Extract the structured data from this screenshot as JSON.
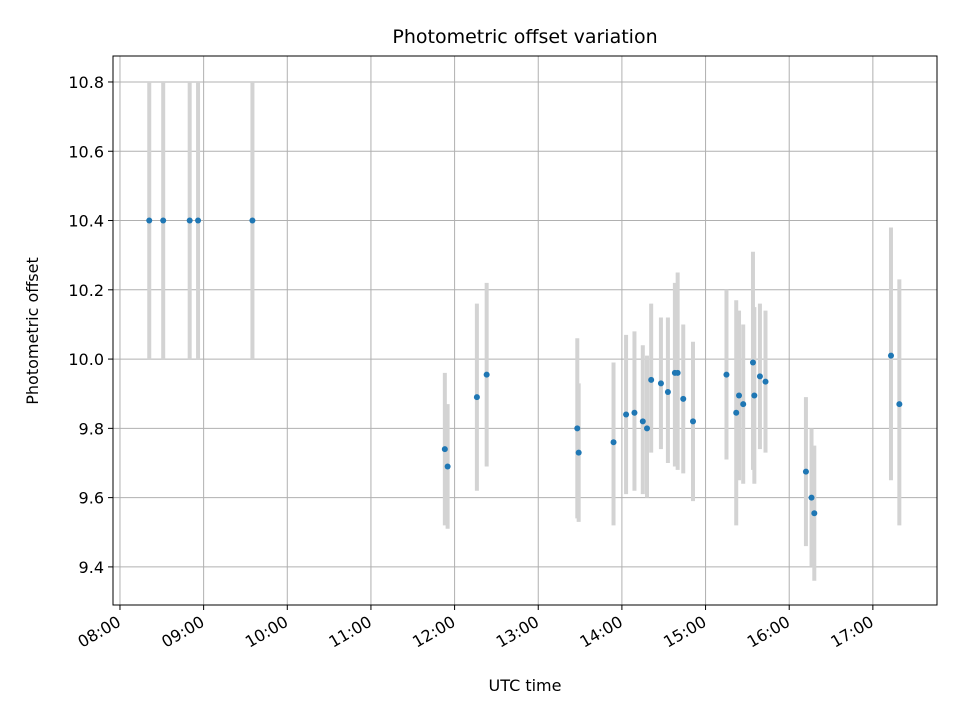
{
  "chart_data": {
    "type": "scatter",
    "title": "Photometric offset variation",
    "xlabel": "UTC time",
    "ylabel": "Photometric offset",
    "xlim": [
      "07:55",
      "17:46"
    ],
    "ylim": [
      9.29,
      10.875
    ],
    "x_ticks": [
      "08:00",
      "09:00",
      "10:00",
      "11:00",
      "12:00",
      "13:00",
      "14:00",
      "15:00",
      "16:00",
      "17:00"
    ],
    "y_ticks": [
      9.4,
      9.6,
      9.8,
      10.0,
      10.2,
      10.4,
      10.6,
      10.8
    ],
    "grid": true,
    "point_color": "#1f77b4",
    "errorbar_color": "#d3d3d3",
    "points": [
      {
        "x": "08:21",
        "y": 10.4,
        "ylo": 10.0,
        "yhi": 10.8
      },
      {
        "x": "08:31",
        "y": 10.4,
        "ylo": 10.0,
        "yhi": 10.8
      },
      {
        "x": "08:50",
        "y": 10.4,
        "ylo": 10.0,
        "yhi": 10.8
      },
      {
        "x": "08:56",
        "y": 10.4,
        "ylo": 10.0,
        "yhi": 10.8
      },
      {
        "x": "09:35",
        "y": 10.4,
        "ylo": 10.0,
        "yhi": 10.8
      },
      {
        "x": "11:53",
        "y": 9.74,
        "ylo": 9.52,
        "yhi": 9.96
      },
      {
        "x": "11:55",
        "y": 9.69,
        "ylo": 9.51,
        "yhi": 9.87
      },
      {
        "x": "12:16",
        "y": 9.89,
        "ylo": 9.62,
        "yhi": 10.16
      },
      {
        "x": "12:23",
        "y": 9.955,
        "ylo": 9.69,
        "yhi": 10.22
      },
      {
        "x": "13:28",
        "y": 9.8,
        "ylo": 9.54,
        "yhi": 10.06
      },
      {
        "x": "13:29",
        "y": 9.73,
        "ylo": 9.53,
        "yhi": 9.93
      },
      {
        "x": "13:54",
        "y": 9.76,
        "ylo": 9.52,
        "yhi": 9.99
      },
      {
        "x": "14:03",
        "y": 9.84,
        "ylo": 9.61,
        "yhi": 10.07
      },
      {
        "x": "14:09",
        "y": 9.845,
        "ylo": 9.62,
        "yhi": 10.08
      },
      {
        "x": "14:15",
        "y": 9.82,
        "ylo": 9.61,
        "yhi": 10.04
      },
      {
        "x": "14:18",
        "y": 9.8,
        "ylo": 9.6,
        "yhi": 10.01
      },
      {
        "x": "14:21",
        "y": 9.94,
        "ylo": 9.73,
        "yhi": 10.16
      },
      {
        "x": "14:28",
        "y": 9.93,
        "ylo": 9.74,
        "yhi": 10.12
      },
      {
        "x": "14:33",
        "y": 9.905,
        "ylo": 9.7,
        "yhi": 10.12
      },
      {
        "x": "14:38",
        "y": 9.96,
        "ylo": 9.69,
        "yhi": 10.22
      },
      {
        "x": "14:40",
        "y": 9.96,
        "ylo": 9.68,
        "yhi": 10.25
      },
      {
        "x": "14:44",
        "y": 9.885,
        "ylo": 9.67,
        "yhi": 10.1
      },
      {
        "x": "14:51",
        "y": 9.82,
        "ylo": 9.59,
        "yhi": 10.05
      },
      {
        "x": "15:15",
        "y": 9.955,
        "ylo": 9.71,
        "yhi": 10.2
      },
      {
        "x": "15:22",
        "y": 9.845,
        "ylo": 9.52,
        "yhi": 10.17
      },
      {
        "x": "15:24",
        "y": 9.895,
        "ylo": 9.65,
        "yhi": 10.14
      },
      {
        "x": "15:27",
        "y": 9.87,
        "ylo": 9.64,
        "yhi": 10.1
      },
      {
        "x": "15:34",
        "y": 9.99,
        "ylo": 9.68,
        "yhi": 10.31
      },
      {
        "x": "15:35",
        "y": 9.895,
        "ylo": 9.64,
        "yhi": 10.15
      },
      {
        "x": "15:39",
        "y": 9.95,
        "ylo": 9.74,
        "yhi": 10.16
      },
      {
        "x": "15:43",
        "y": 9.935,
        "ylo": 9.73,
        "yhi": 10.14
      },
      {
        "x": "16:12",
        "y": 9.675,
        "ylo": 9.46,
        "yhi": 9.89
      },
      {
        "x": "16:16",
        "y": 9.6,
        "ylo": 9.4,
        "yhi": 9.8
      },
      {
        "x": "16:18",
        "y": 9.555,
        "ylo": 9.36,
        "yhi": 9.75
      },
      {
        "x": "17:13",
        "y": 10.01,
        "ylo": 9.65,
        "yhi": 10.38
      },
      {
        "x": "17:19",
        "y": 9.87,
        "ylo": 9.52,
        "yhi": 10.23
      }
    ]
  }
}
